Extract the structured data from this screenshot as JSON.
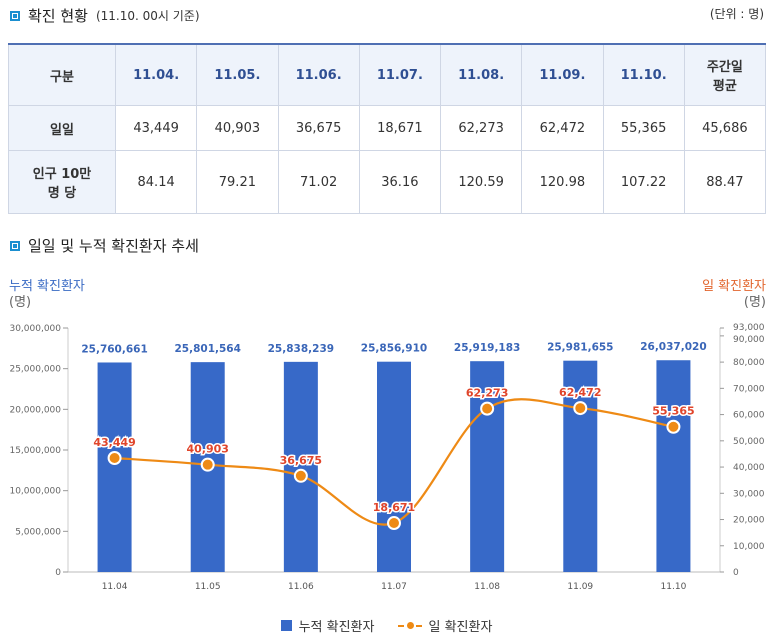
{
  "section1": {
    "title": "확진 현황",
    "subtitle": "(11.10. 00시 기준)",
    "unit": "(단위 : 명)"
  },
  "table": {
    "corner": "구분",
    "dates": [
      "11.04.",
      "11.05.",
      "11.06.",
      "11.07.",
      "11.08.",
      "11.09.",
      "11.10."
    ],
    "avg_header": "주간일 평균",
    "rows": [
      {
        "label": "일일",
        "values": [
          "43,449",
          "40,903",
          "36,675",
          "18,671",
          "62,273",
          "62,472",
          "55,365"
        ],
        "avg": "45,686"
      },
      {
        "label": "인구 10만 명 당",
        "values": [
          "84.14",
          "79.21",
          "71.02",
          "36.16",
          "120.59",
          "120.98",
          "107.22"
        ],
        "avg": "88.47"
      }
    ]
  },
  "section2": {
    "title": "일일 및 누적 확진환자 추세"
  },
  "colors": {
    "bar": "#3769c8",
    "line": "#ee8a15",
    "left_axis": "#3a6bc4",
    "right_axis": "#e2662e"
  },
  "chart_data": {
    "type": "bar",
    "categories": [
      "11.04",
      "11.05",
      "11.06",
      "11.07",
      "11.08",
      "11.09",
      "11.10"
    ],
    "series": [
      {
        "name": "누적 확진환자",
        "type": "bar",
        "axis": "left",
        "values": [
          25760661,
          25801564,
          25838239,
          25856910,
          25919183,
          25981655,
          26037020
        ],
        "labels": [
          "25,760,661",
          "25,801,564",
          "25,838,239",
          "25,856,910",
          "25,919,183",
          "25,981,655",
          "26,037,020"
        ]
      },
      {
        "name": "일 확진환자",
        "type": "line",
        "axis": "right",
        "values": [
          43449,
          40903,
          36675,
          18671,
          62273,
          62472,
          55365
        ],
        "labels": [
          "43,449",
          "40,903",
          "36,675",
          "18,671",
          "62,273",
          "62,472",
          "55,365"
        ]
      }
    ],
    "left_axis": {
      "title": "누적 확진환자",
      "unit": "(명)",
      "min": 0,
      "max": 30000000,
      "ticks": [
        0,
        5000000,
        10000000,
        15000000,
        20000000,
        25000000,
        30000000
      ],
      "tick_labels": [
        "0",
        "5,000,000",
        "10,000,000",
        "15,000,000",
        "20,000,000",
        "25,000,000",
        "30,000,000"
      ]
    },
    "right_axis": {
      "title": "일 확진환자",
      "unit": "(명)",
      "min": 0,
      "max": 93000,
      "ticks": [
        0,
        10000,
        20000,
        30000,
        40000,
        50000,
        60000,
        70000,
        80000,
        90000,
        93000
      ],
      "tick_labels": [
        "0",
        "10,000",
        "20,000",
        "30,000",
        "40,000",
        "50,000",
        "60,000",
        "70,000",
        "80,000",
        "90,000",
        "93,000"
      ]
    },
    "legend": [
      "누적 확진환자",
      "일 확진환자"
    ]
  }
}
